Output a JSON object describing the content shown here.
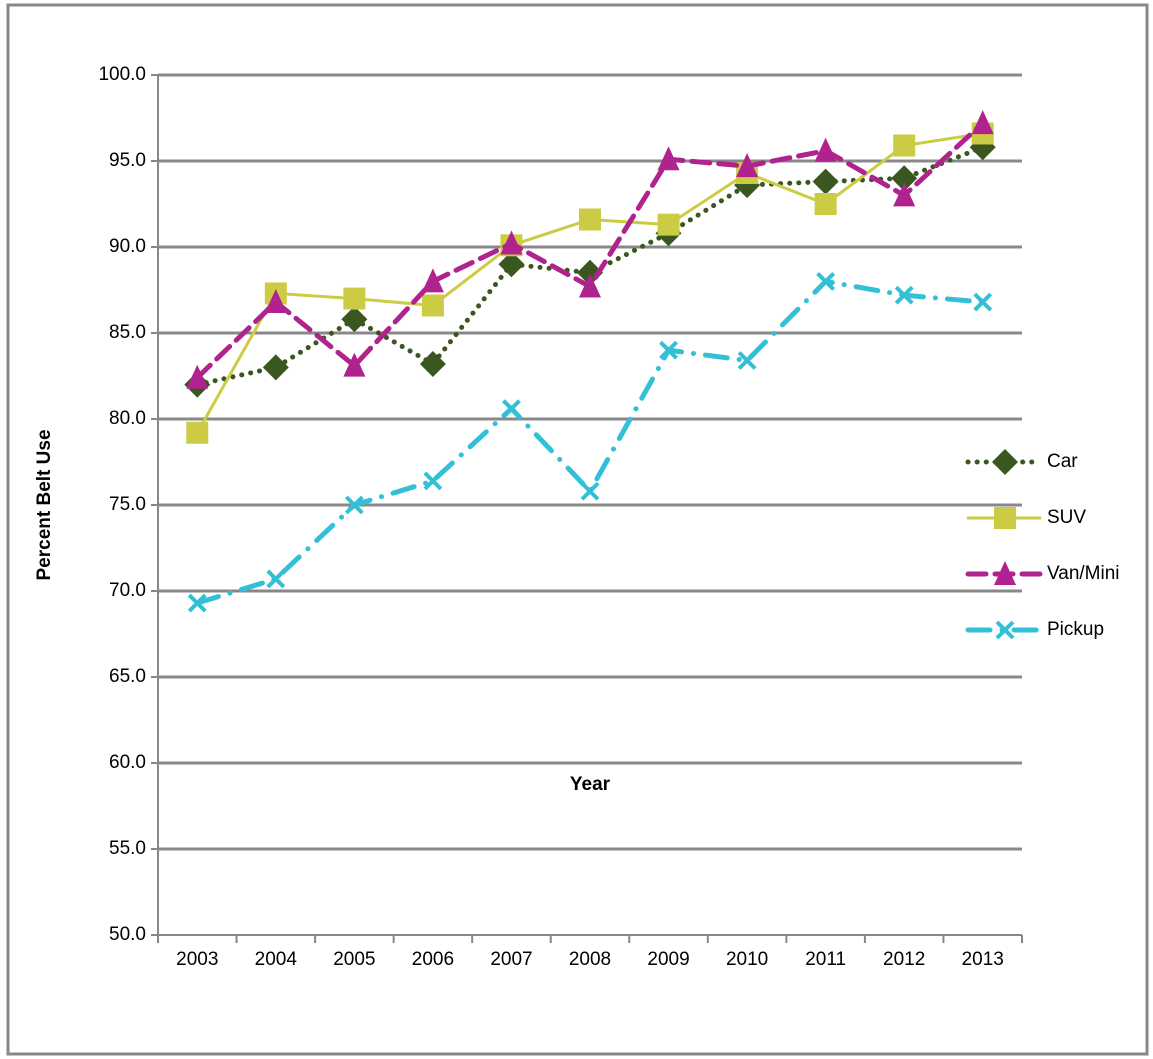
{
  "chart_data": {
    "type": "line",
    "x_label": "Year",
    "y_label": "Percent Belt Use",
    "categories": [
      "2003",
      "2004",
      "2005",
      "2006",
      "2007",
      "2008",
      "2009",
      "2010",
      "2011",
      "2012",
      "2013"
    ],
    "series": [
      {
        "name": "Car",
        "color": "#3b5720",
        "marker": "diamond",
        "dash": "dot",
        "values": [
          82.0,
          83.0,
          85.8,
          83.2,
          89.0,
          88.5,
          90.8,
          93.6,
          93.8,
          94.0,
          95.8
        ]
      },
      {
        "name": "SUV",
        "color": "#cccc44",
        "marker": "square",
        "dash": "solid",
        "values": [
          79.2,
          87.3,
          87.0,
          86.6,
          90.1,
          91.6,
          91.3,
          94.3,
          92.5,
          95.9,
          96.6
        ]
      },
      {
        "name": "Van/Mini",
        "color": "#b0238f",
        "marker": "triangle",
        "dash": "dash",
        "values": [
          82.4,
          86.8,
          83.1,
          88.0,
          90.2,
          87.7,
          95.1,
          94.7,
          95.6,
          93.0,
          97.2
        ]
      },
      {
        "name": "Pickup",
        "color": "#33c0d6",
        "marker": "x",
        "dash": "dashdot",
        "values": [
          69.3,
          70.7,
          75.0,
          76.4,
          80.6,
          75.8,
          84.0,
          83.4,
          88.0,
          87.2,
          86.8
        ]
      }
    ],
    "ylim": [
      50,
      100
    ],
    "yticks": [
      {
        "value": 50,
        "label": "50.0"
      },
      {
        "value": 55,
        "label": "55.0"
      },
      {
        "value": 60,
        "label": "60.0"
      },
      {
        "value": 65,
        "label": "65.0"
      },
      {
        "value": 70,
        "label": "70.0"
      },
      {
        "value": 75,
        "label": "75.0"
      },
      {
        "value": 80,
        "label": "80.0"
      },
      {
        "value": 85,
        "label": "85.0"
      },
      {
        "value": 90,
        "label": "90.0"
      },
      {
        "value": 95,
        "label": "95.0"
      },
      {
        "value": 100,
        "label": "100.0"
      }
    ],
    "grid": true,
    "legend": "right"
  }
}
